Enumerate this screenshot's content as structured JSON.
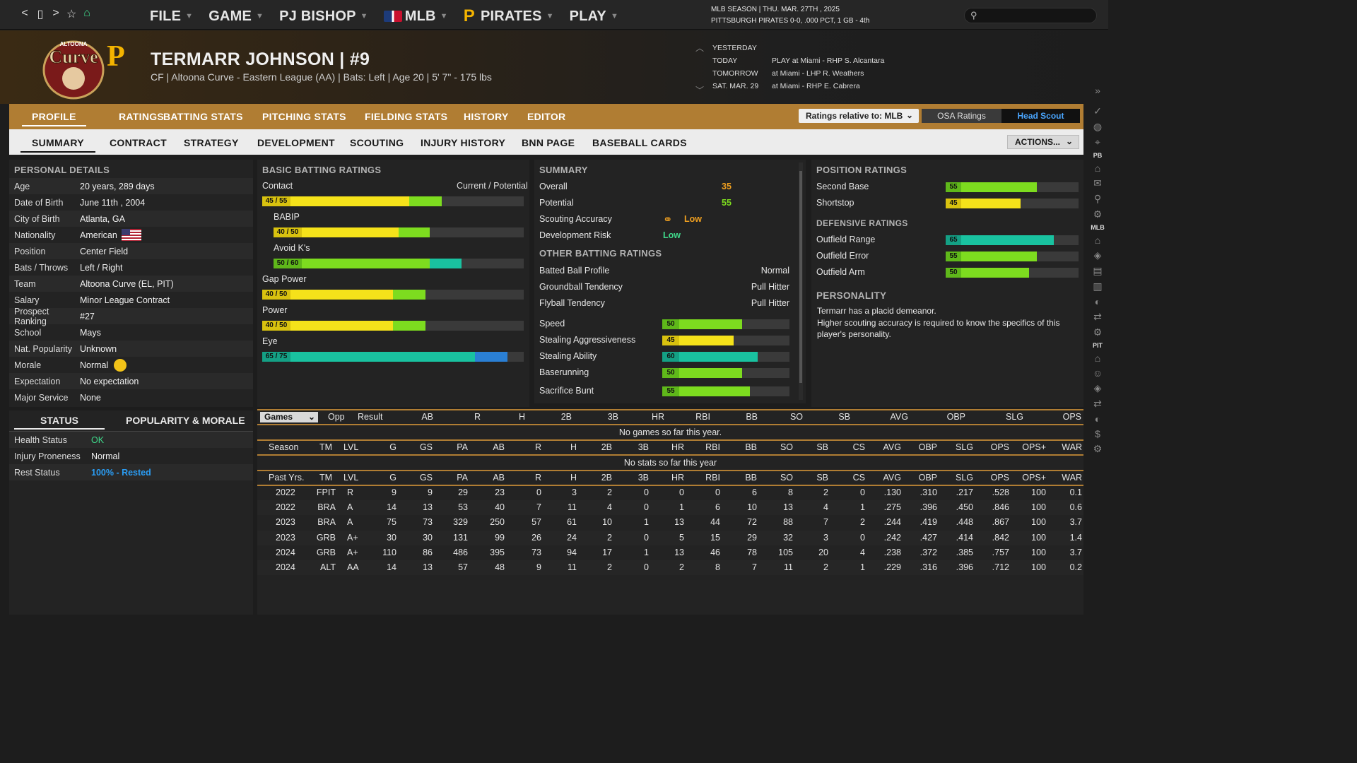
{
  "nav": {
    "back": "<",
    "page": "▯",
    "forward": ">",
    "star": "☆",
    "home": "⌂"
  },
  "menu": [
    {
      "label": "FILE"
    },
    {
      "label": "GAME"
    },
    {
      "label": "PJ BISHOP"
    },
    {
      "label": "MLB"
    },
    {
      "label": "PIRATES"
    },
    {
      "label": "PLAY"
    }
  ],
  "season": {
    "line1": "MLB SEASON  |  THU. MAR. 27TH , 2025",
    "line2": "PITTSBURGH PIRATES  0-0, .000 PCT, 1 GB - 4th"
  },
  "player": {
    "name": "TERMARR JOHNSON  |  #9",
    "line": "CF | Altoona Curve - Eastern League (AA)  |  Bats: Left  |  Age 20  |  5' 7\"  - 175 lbs"
  },
  "logo": {
    "top": "ALTOONA",
    "main": "CurveP"
  },
  "schedule": [
    {
      "day": "YESTERDAY",
      "game": ""
    },
    {
      "day": "TODAY",
      "game": "PLAY at Miami - RHP S. Alcantara"
    },
    {
      "day": "TOMORROW",
      "game": "at Miami - LHP R. Weathers"
    },
    {
      "day": "SAT. MAR. 29",
      "game": "at Miami - RHP E. Cabrera"
    }
  ],
  "tabs1": [
    "PROFILE",
    "RATINGS",
    "BATTING STATS",
    "PITCHING STATS",
    "FIELDING STATS",
    "HISTORY",
    "EDITOR"
  ],
  "ratings_rel": "Ratings relative to: MLB",
  "osa": "OSA Ratings",
  "head_scout": "Head Scout",
  "tabs2": [
    "SUMMARY",
    "CONTRACT",
    "STRATEGY",
    "DEVELOPMENT",
    "SCOUTING",
    "INJURY HISTORY",
    "BNN PAGE",
    "BASEBALL CARDS"
  ],
  "actions": "ACTIONS...",
  "rightbar": {
    "pb": "PB",
    "mlb": "MLB",
    "pit": "PIT"
  },
  "personal": {
    "title": "PERSONAL DETAILS",
    "rows": [
      {
        "k": "Age",
        "v": "20 years, 289 days"
      },
      {
        "k": "Date of Birth",
        "v": "June 11th , 2004"
      },
      {
        "k": "City of Birth",
        "v": "Atlanta, GA"
      },
      {
        "k": "Nationality",
        "v": "American"
      },
      {
        "k": "Position",
        "v": "Center Field"
      },
      {
        "k": "Bats / Throws",
        "v": "Left / Right"
      },
      {
        "k": "Team",
        "v": "Altoona Curve (EL, PIT)"
      },
      {
        "k": "Salary",
        "v": "Minor League Contract"
      },
      {
        "k": "Prospect Ranking",
        "v": "#27"
      },
      {
        "k": "School",
        "v": "Mays"
      },
      {
        "k": "Nat. Popularity",
        "v": "Unknown"
      },
      {
        "k": "Morale",
        "v": "Normal"
      },
      {
        "k": "Expectation",
        "v": "No expectation"
      },
      {
        "k": "Major Service",
        "v": "None"
      }
    ]
  },
  "status": {
    "tab1": "STATUS",
    "tab2": "POPULARITY & MORALE",
    "rows": [
      {
        "k": "Health Status",
        "v": "OK"
      },
      {
        "k": "Injury Proneness",
        "v": "Normal"
      },
      {
        "k": "Rest Status",
        "v": "100% - Rested"
      }
    ]
  },
  "batting": {
    "title": "BASIC BATTING RATINGS",
    "cp": "Current / Potential",
    "ratings": [
      {
        "label": "Contact",
        "badge": "45 / 55",
        "cur": 45,
        "pot": 55,
        "color": "yellow"
      },
      {
        "label": "BABIP",
        "badge": "40 / 50",
        "cur": 40,
        "pot": 50,
        "color": "yellow"
      },
      {
        "label": "Avoid K's",
        "badge": "50 / 60",
        "cur": 50,
        "pot": 60,
        "color": "green"
      },
      {
        "label": "Gap Power",
        "badge": "40 / 50",
        "cur": 40,
        "pot": 50,
        "color": "yellow"
      },
      {
        "label": "Power",
        "badge": "40 / 50",
        "cur": 40,
        "pot": 50,
        "color": "yellow"
      },
      {
        "label": "Eye",
        "badge": "65 / 75",
        "cur": 65,
        "pot": 75,
        "color": "teal"
      }
    ]
  },
  "summary": {
    "title": "SUMMARY",
    "overall_k": "Overall",
    "overall": "35",
    "potential_k": "Potential",
    "potential": "55",
    "acc_k": "Scouting Accuracy",
    "acc": "Low",
    "risk_k": "Development Risk",
    "risk": "Low",
    "other_title": "OTHER BATTING RATINGS",
    "other": [
      {
        "k": "Batted Ball Profile",
        "v": "Normal"
      },
      {
        "k": "Groundball Tendency",
        "v": "Pull Hitter"
      },
      {
        "k": "Flyball Tendency",
        "v": "Pull Hitter"
      }
    ],
    "bars": [
      {
        "k": "Speed",
        "v": 50
      },
      {
        "k": "Stealing Aggressiveness",
        "v": 45
      },
      {
        "k": "Stealing Ability",
        "v": 60
      },
      {
        "k": "Baserunning",
        "v": 50
      },
      {
        "k": "Sacrifice Bunt",
        "v": 55
      }
    ]
  },
  "position": {
    "title": "POSITION RATINGS",
    "rows": [
      {
        "k": "Second Base",
        "v": 55
      },
      {
        "k": "Shortstop",
        "v": 45
      }
    ],
    "def_title": "DEFENSIVE RATINGS",
    "def": [
      {
        "k": "Outfield Range",
        "v": 65
      },
      {
        "k": "Outfield Error",
        "v": 55
      },
      {
        "k": "Outfield Arm",
        "v": 50
      }
    ],
    "pers_title": "PERSONALITY",
    "pers1": "Termarr has a placid demeanor.",
    "pers2": "Higher scouting accuracy is required to know the specifics of this player's personality."
  },
  "games": {
    "select": "Games",
    "headers": [
      "Opp",
      "Result",
      "AB",
      "R",
      "H",
      "2B",
      "3B",
      "HR",
      "RBI",
      "BB",
      "SO",
      "SB",
      "AVG",
      "OBP",
      "SLG",
      "OPS"
    ],
    "empty": "No games so far this year."
  },
  "season_stats": {
    "headers": [
      "Season",
      "TM",
      "LVL",
      "G",
      "GS",
      "PA",
      "AB",
      "R",
      "H",
      "2B",
      "3B",
      "HR",
      "RBI",
      "BB",
      "SO",
      "SB",
      "CS",
      "AVG",
      "OBP",
      "SLG",
      "OPS",
      "OPS+",
      "WAR"
    ],
    "empty": "No stats so far this year"
  },
  "past": {
    "headers": [
      "Past Yrs.",
      "TM",
      "LVL",
      "G",
      "GS",
      "PA",
      "AB",
      "R",
      "H",
      "2B",
      "3B",
      "HR",
      "RBI",
      "BB",
      "SO",
      "SB",
      "CS",
      "AVG",
      "OBP",
      "SLG",
      "OPS",
      "OPS+",
      "WAR"
    ],
    "rows": [
      [
        "2022",
        "FPIT",
        "R",
        "9",
        "9",
        "29",
        "23",
        "0",
        "3",
        "2",
        "0",
        "0",
        "0",
        "6",
        "8",
        "2",
        "0",
        ".130",
        ".310",
        ".217",
        ".528",
        "100",
        "0.1"
      ],
      [
        "2022",
        "BRA",
        "A",
        "14",
        "13",
        "53",
        "40",
        "7",
        "11",
        "4",
        "0",
        "1",
        "6",
        "10",
        "13",
        "4",
        "1",
        ".275",
        ".396",
        ".450",
        ".846",
        "100",
        "0.6"
      ],
      [
        "2023",
        "BRA",
        "A",
        "75",
        "73",
        "329",
        "250",
        "57",
        "61",
        "10",
        "1",
        "13",
        "44",
        "72",
        "88",
        "7",
        "2",
        ".244",
        ".419",
        ".448",
        ".867",
        "100",
        "3.7"
      ],
      [
        "2023",
        "GRB",
        "A+",
        "30",
        "30",
        "131",
        "99",
        "26",
        "24",
        "2",
        "0",
        "5",
        "15",
        "29",
        "32",
        "3",
        "0",
        ".242",
        ".427",
        ".414",
        ".842",
        "100",
        "1.4"
      ],
      [
        "2024",
        "GRB",
        "A+",
        "110",
        "86",
        "486",
        "395",
        "73",
        "94",
        "17",
        "1",
        "13",
        "46",
        "78",
        "105",
        "20",
        "4",
        ".238",
        ".372",
        ".385",
        ".757",
        "100",
        "3.7"
      ],
      [
        "2024",
        "ALT",
        "AA",
        "14",
        "13",
        "57",
        "48",
        "9",
        "11",
        "2",
        "0",
        "2",
        "8",
        "7",
        "11",
        "2",
        "1",
        ".229",
        ".316",
        ".396",
        ".712",
        "100",
        "0.2"
      ]
    ]
  },
  "colors": {
    "accent": "#b07d33",
    "yellow": "#f5e21a",
    "green": "#7ddc1f",
    "teal": "#19c2a0",
    "blue": "#2a7fd4",
    "lowOrange": "#f0a020",
    "lowGreen": "#3fd88a",
    "okGreen": "#3fd88a",
    "restBlue": "#2a9df4"
  }
}
